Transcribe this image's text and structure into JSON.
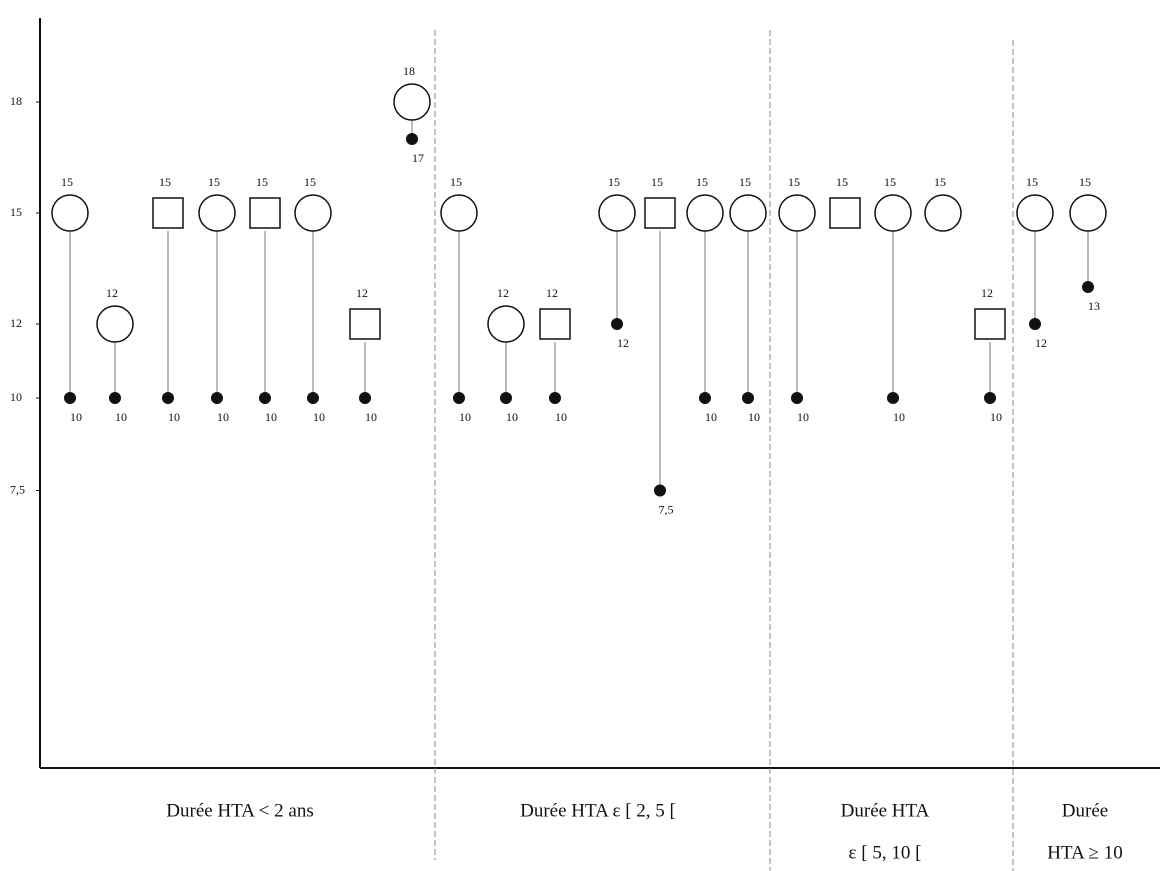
{
  "chart_data": {
    "type": "dumbbell",
    "ylim": [
      0,
      20
    ],
    "yticks": [
      {
        "value": 7.5,
        "label": "7,5"
      },
      10,
      12,
      15,
      18
    ],
    "color": "#111111",
    "groups": [
      {
        "label": [
          "Durée HTA < 2 ans"
        ],
        "patients": [
          {
            "shape": "circle",
            "high": 15,
            "low": 10
          },
          {
            "shape": "circle",
            "high": 12,
            "low": 10
          },
          {
            "shape": "square",
            "high": 15,
            "low": 10
          },
          {
            "shape": "circle",
            "high": 15,
            "low": 10
          },
          {
            "shape": "square",
            "high": 15,
            "low": 10
          },
          {
            "shape": "circle",
            "high": 15,
            "low": 10
          },
          {
            "shape": "square",
            "high": 12,
            "low": 10
          },
          {
            "shape": "circle",
            "high": 18,
            "low": 17
          }
        ]
      },
      {
        "label": [
          "Durée HTA  ε [ 2, 5 ["
        ],
        "patients": [
          {
            "shape": "circle",
            "high": 15,
            "low": 10
          },
          {
            "shape": "circle",
            "high": 12,
            "low": 10
          },
          {
            "shape": "square",
            "high": 12,
            "low": 10
          },
          {
            "shape": "circle",
            "high": 15,
            "low": 12
          },
          {
            "shape": "square",
            "high": 15,
            "low": 7.5,
            "low_label": "7,5"
          },
          {
            "shape": "circle",
            "high": 15,
            "low": 10
          },
          {
            "shape": "circle",
            "high": 15,
            "low": 10
          }
        ]
      },
      {
        "label": [
          "Durée HTA",
          "ε [ 5, 10 ["
        ],
        "patients": [
          {
            "shape": "circle",
            "high": 15,
            "low": 10
          },
          {
            "shape": "square",
            "high": 15,
            "low": null
          },
          {
            "shape": "circle",
            "high": 15,
            "low": 10
          },
          {
            "shape": "circle",
            "high": 15,
            "low": null
          },
          {
            "shape": "square",
            "high": 12,
            "low": 10
          }
        ]
      },
      {
        "label": [
          "Durée",
          "HTA  ≥ 10"
        ],
        "patients": [
          {
            "shape": "circle",
            "high": 15,
            "low": 12
          },
          {
            "shape": "circle",
            "high": 15,
            "low": 13
          }
        ]
      }
    ]
  }
}
